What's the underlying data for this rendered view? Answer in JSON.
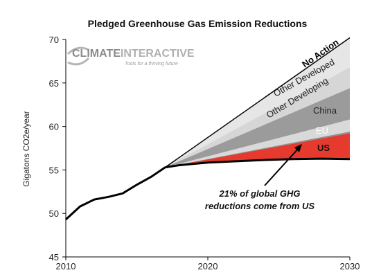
{
  "chart_data": {
    "type": "area",
    "title": "Pledged Greenhouse Gas Emission Reductions",
    "ylabel": "Gigatons CO2e/year",
    "xlim": [
      2010,
      2030
    ],
    "ylim": [
      45,
      70
    ],
    "x_ticks": [
      "2010",
      "2020",
      "2030"
    ],
    "y_ticks": [
      "45",
      "50",
      "55",
      "60",
      "65",
      "70"
    ],
    "grid": false,
    "historical": {
      "x": [
        2010,
        2011,
        2012,
        2013,
        2014,
        2015,
        2016,
        2017
      ],
      "values": [
        49.3,
        50.8,
        51.6,
        51.9,
        52.3,
        53.3,
        54.2,
        55.3
      ]
    },
    "projection_x": [
      2017,
      2030
    ],
    "baseline_series": [
      {
        "name": "No Action",
        "values": [
          55.3,
          70.2
        ]
      }
    ],
    "pledged_path": {
      "x": [
        2017,
        2018,
        2020,
        2022,
        2024,
        2026,
        2028,
        2030
      ],
      "values": [
        55.3,
        55.55,
        55.85,
        56.0,
        56.15,
        56.25,
        56.3,
        56.25
      ]
    },
    "series": [
      {
        "name": "Other Developed",
        "top": [
          55.3,
          66.8
        ],
        "color": "#d6d6d6"
      },
      {
        "name": "Other Developing",
        "top": [
          55.3,
          64.4
        ],
        "color": "#9b9b9b"
      },
      {
        "name": "China",
        "top": [
          55.3,
          60.8
        ],
        "color": "#d9d9d9"
      },
      {
        "name": "EU",
        "top": [
          55.3,
          59.4
        ],
        "color": "#8f8f8f"
      },
      {
        "name": "US",
        "top": [
          55.3,
          59.2
        ],
        "color": "#e63a2e"
      }
    ],
    "annotation": {
      "line1": "21% of global GHG",
      "line2": "reductions come from US"
    }
  },
  "logo": {
    "text_a": "CLIMATE",
    "text_b": "INTERACTIVE",
    "tagline": "Tools for a thriving future"
  },
  "colors": {
    "us": "#e63a2e",
    "line": "#000000"
  }
}
